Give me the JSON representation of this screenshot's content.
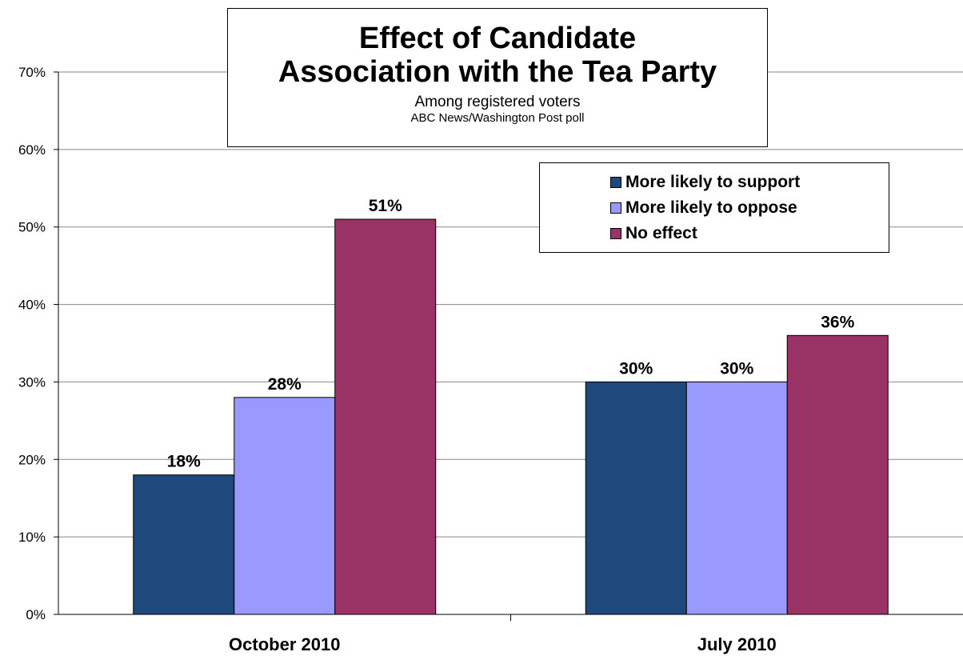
{
  "chart_data": {
    "type": "bar",
    "title_lines": [
      "Effect of Candidate",
      "Association with the Tea Party"
    ],
    "subtitle": "Among registered voters",
    "source": "ABC News/Washington Post poll",
    "categories": [
      "October 2010",
      "July 2010"
    ],
    "series": [
      {
        "name": "More likely to support",
        "values": [
          18,
          30
        ],
        "color": "#1f497d",
        "labels": [
          "18%",
          "30%"
        ]
      },
      {
        "name": "More likely to oppose",
        "values": [
          28,
          30
        ],
        "color": "#9999ff",
        "labels": [
          "28%",
          "30%"
        ]
      },
      {
        "name": "No effect",
        "values": [
          51,
          36
        ],
        "color": "#993366",
        "labels": [
          "51%",
          "36%"
        ]
      }
    ],
    "ylim": [
      0,
      70
    ],
    "yticks": [
      0,
      10,
      20,
      30,
      40,
      50,
      60,
      70
    ],
    "ytick_labels": [
      "0%",
      "10%",
      "20%",
      "30%",
      "40%",
      "50%",
      "60%",
      "70%"
    ],
    "grid": "major y gridlines",
    "legend_position": "upper-right"
  }
}
